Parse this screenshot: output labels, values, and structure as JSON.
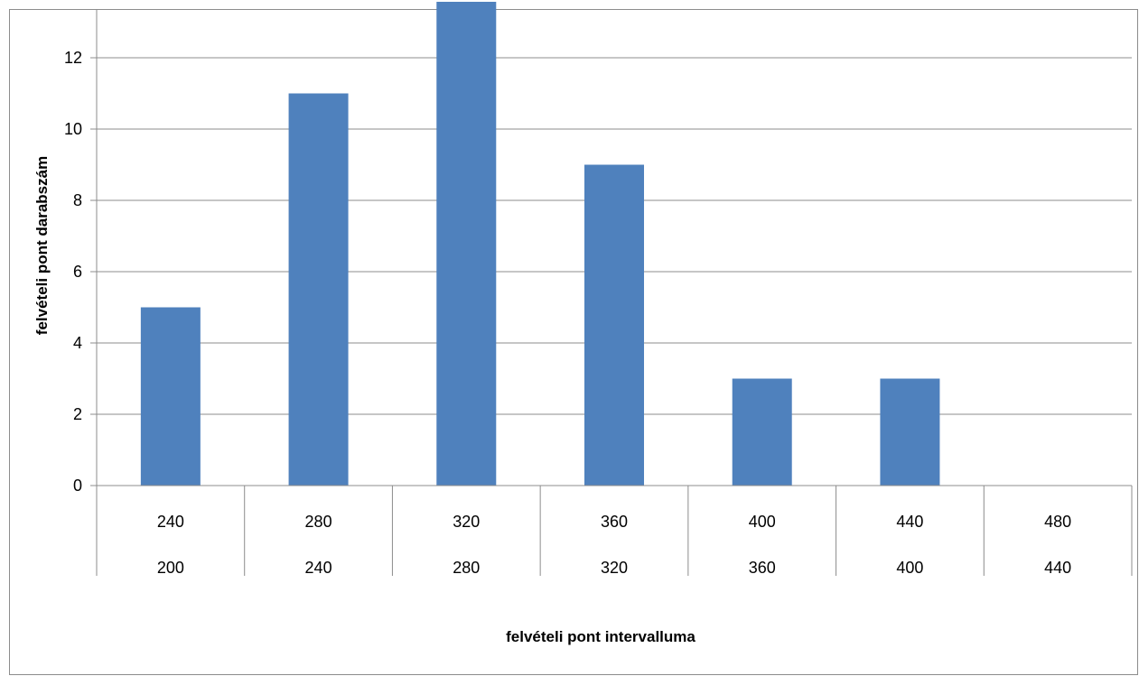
{
  "chart_data": {
    "type": "bar",
    "title": "",
    "xlabel": "felvételi pont intervalluma",
    "ylabel": "felvételi pont darabszám",
    "categories": [
      {
        "upper": "240",
        "lower": "200"
      },
      {
        "upper": "280",
        "lower": "240"
      },
      {
        "upper": "320",
        "lower": "280"
      },
      {
        "upper": "360",
        "lower": "320"
      },
      {
        "upper": "400",
        "lower": "360"
      },
      {
        "upper": "440",
        "lower": "400"
      },
      {
        "upper": "480",
        "lower": "440"
      }
    ],
    "values": [
      5,
      11,
      14,
      9,
      3,
      3,
      0
    ],
    "ylim": [
      0,
      13.5
    ],
    "yticks": [
      "0",
      "2",
      "4",
      "6",
      "8",
      "10",
      "12"
    ],
    "grid": true,
    "legend": "none",
    "bar_color": "#4f81bd",
    "grid_color": "#8c8c8c"
  }
}
